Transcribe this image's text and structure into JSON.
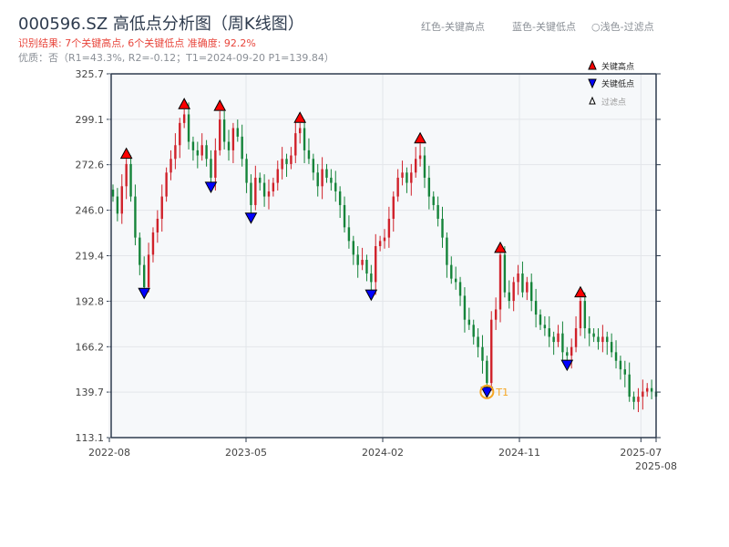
{
  "header": {
    "title": "000596.SZ 高低点分析图（周K线图）",
    "result": "识别结果: 7个关键高点, 6个关键低点  准确度: 92.2%",
    "quality": "优质：否（R1=43.3%, R2=-0.12；T1=2024-09-20 P1=139.84）",
    "legend_red": "红色-关键高点",
    "legend_blue": "蓝色-关键低点",
    "legend_light": "○浅色-过滤点"
  },
  "colors": {
    "up": "#d0212a",
    "down": "#15843a",
    "high_marker": "#ff0000",
    "low_marker": "#0000ff",
    "t1": "#f5a623",
    "plot_bg": "#f6f8fa"
  },
  "chart_data": {
    "type": "candlestick",
    "title": "000596.SZ 高低点分析图（周K线图）",
    "ylim": [
      113.1,
      325.7
    ],
    "yticks": [
      113.1,
      139.7,
      166.2,
      192.8,
      219.4,
      246.0,
      272.6,
      299.1,
      325.7
    ],
    "xticks": [
      "2022-08",
      "2023-05",
      "2024-02",
      "2024-11",
      "2025-07",
      "2025-08"
    ],
    "grid": true,
    "legend_placement": "top-right",
    "legend": [
      "关键高点",
      "关键低点",
      "过滤点"
    ],
    "closes": [
      254,
      244,
      260,
      273,
      254,
      230,
      214,
      201,
      220,
      233,
      241,
      254,
      268,
      276,
      284,
      297,
      302,
      286,
      281,
      278,
      284,
      276,
      265,
      281,
      299,
      286,
      281,
      294,
      289,
      276,
      262,
      249,
      265,
      262,
      254,
      257,
      262,
      270,
      276,
      273,
      278,
      291,
      294,
      281,
      276,
      268,
      260,
      270,
      265,
      262,
      257,
      249,
      236,
      228,
      220,
      214,
      217,
      209,
      204,
      225,
      228,
      230,
      241,
      254,
      265,
      268,
      262,
      268,
      276,
      278,
      265,
      254,
      249,
      241,
      230,
      214,
      206,
      204,
      196,
      182,
      179,
      172,
      166,
      158,
      145,
      182,
      188,
      220,
      198,
      193,
      204,
      209,
      198,
      204,
      193,
      185,
      179,
      177,
      172,
      169,
      174,
      163,
      161,
      166,
      177,
      193,
      177,
      174,
      172,
      169,
      172,
      169,
      163,
      158,
      153,
      150,
      137,
      134,
      137,
      140,
      142,
      140,
      137
    ],
    "key_highs": [
      {
        "index": 3,
        "price": 279
      },
      {
        "index": 16,
        "price": 308
      },
      {
        "index": 24,
        "price": 307
      },
      {
        "index": 42,
        "price": 300
      },
      {
        "index": 69,
        "price": 288
      },
      {
        "index": 87,
        "price": 224
      },
      {
        "index": 105,
        "price": 198
      }
    ],
    "key_lows": [
      {
        "index": 7,
        "price": 195
      },
      {
        "index": 22,
        "price": 257
      },
      {
        "index": 31,
        "price": 239
      },
      {
        "index": 58,
        "price": 194
      },
      {
        "index": 84,
        "price": 139.84
      },
      {
        "index": 102,
        "price": 153
      }
    ],
    "t1": {
      "label": "T1",
      "index": 84,
      "price": 139.84
    }
  }
}
